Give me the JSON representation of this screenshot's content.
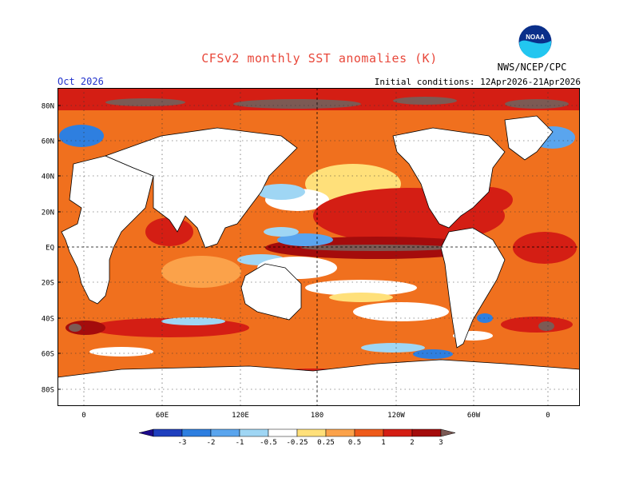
{
  "header": {
    "title": "CFSv2 monthly SST anomalies (K)",
    "month": "Oct 2026",
    "initial_conditions": "Initial conditions: 12Apr2026-21Apr2026",
    "agency": "NWS/NCEP/CPC",
    "logo_text": "NOAA"
  },
  "map": {
    "lat_labels": [
      "80N",
      "60N",
      "40N",
      "20N",
      "EQ",
      "20S",
      "40S",
      "60S",
      "80S"
    ],
    "lon_labels": [
      "0",
      "60E",
      "120E",
      "180",
      "120W",
      "60W",
      "0"
    ],
    "lat_range": [
      -90,
      90
    ],
    "lon_range": [
      -10,
      360
    ],
    "ocean_fill_color": "#f0701e",
    "land_color": "#ffffff",
    "gridline_style": "dotted"
  },
  "colorbar": {
    "tick_labels": [
      "-3",
      "-2",
      "-1",
      "-0.5",
      "-0.25",
      "0.25",
      "0.5",
      "1",
      "2",
      "3"
    ],
    "colors": [
      "#1c0a8c",
      "#1f3fbe",
      "#2e7fe0",
      "#5aa5ee",
      "#9fd6f4",
      "#ffffff",
      "#ffe07a",
      "#fba24a",
      "#ee5a1a",
      "#d41e14",
      "#a40c0c",
      "#7c5a54"
    ]
  }
}
